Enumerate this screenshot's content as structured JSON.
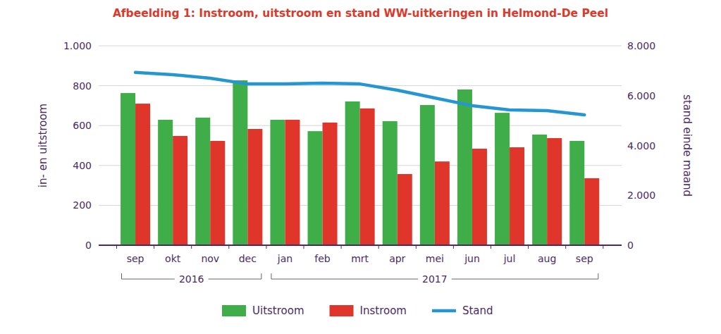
{
  "chart_data": {
    "type": "bar",
    "title": "Afbeelding 1: Instroom, uitstroom en stand WW-uitkeringen in Helmond-De Peel",
    "y_label": "in- en uitstroom",
    "y2_label": "stand einde maand",
    "categories": [
      "sep",
      "okt",
      "nov",
      "dec",
      "jan",
      "feb",
      "mrt",
      "apr",
      "mei",
      "jun",
      "jul",
      "aug",
      "sep"
    ],
    "category_groups": [
      {
        "label": "2016",
        "categories": 4
      },
      {
        "label": "2017",
        "categories": 9
      }
    ],
    "series": [
      {
        "name": "Uitstroom",
        "color": "#3fae49",
        "values": [
          763,
          629,
          640,
          827,
          629,
          572,
          721,
          622,
          703,
          781,
          664,
          555,
          523
        ]
      },
      {
        "name": "Instroom",
        "color": "#e0352b",
        "values": [
          710,
          548,
          523,
          583,
          629,
          615,
          686,
          357,
          420,
          484,
          491,
          537,
          336
        ]
      },
      {
        "name": "Stand",
        "color": "#2596d1",
        "type": "line",
        "axis": "y2",
        "values": [
          6930,
          6840,
          6700,
          6470,
          6470,
          6500,
          6470,
          6220,
          5910,
          5600,
          5430,
          5400,
          5230
        ]
      }
    ],
    "ylim": [
      0,
      1000
    ],
    "yticks": [
      0,
      200,
      400,
      600,
      800,
      {
        "value": 1000,
        "label": "1.000"
      }
    ],
    "y2lim": [
      0,
      8000
    ],
    "y2ticks": [
      0,
      {
        "value": 2000,
        "label": "2.000"
      },
      {
        "value": 4000,
        "label": "4.000"
      },
      {
        "value": 6000,
        "label": "6.000"
      },
      {
        "value": 8000,
        "label": "8.000"
      }
    ],
    "grid": true,
    "legend": "bottom"
  }
}
